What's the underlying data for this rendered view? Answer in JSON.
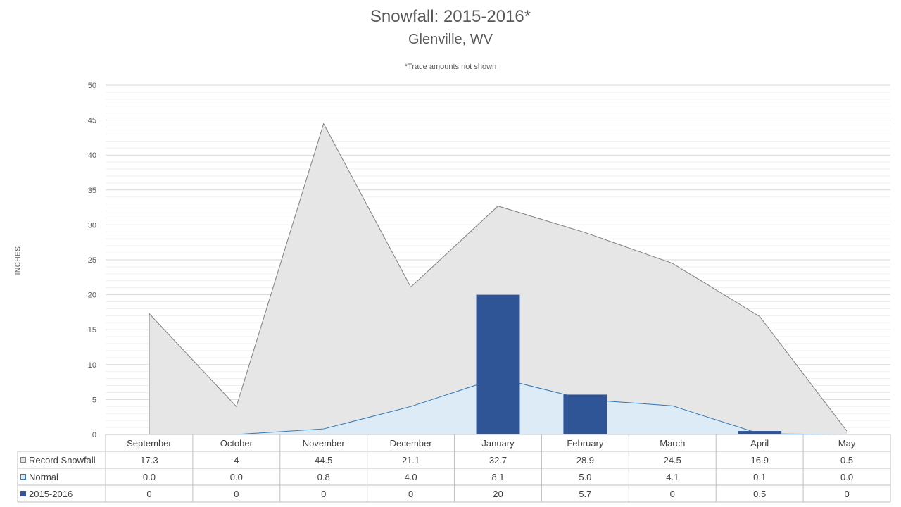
{
  "chart_data": {
    "type": "area",
    "title": "Snowfall: 2015-2016*",
    "subtitle": "Glenville, WV",
    "note": "*Trace amounts not shown",
    "ylabel": "INCHES",
    "xlabel": "",
    "ylim": [
      0,
      50
    ],
    "yticks": [
      0,
      5,
      10,
      15,
      20,
      25,
      30,
      35,
      40,
      45,
      50
    ],
    "grid": true,
    "legend": "data-table",
    "categories": [
      "September",
      "October",
      "November",
      "December",
      "January",
      "February",
      "March",
      "April",
      "May"
    ],
    "series": [
      {
        "name": "Record Snowfall",
        "kind": "area",
        "color": "#e7e6e6",
        "line_color": "#7f7f7f",
        "values": [
          17.3,
          4,
          44.5,
          21.1,
          32.7,
          28.9,
          24.5,
          16.9,
          0.5
        ],
        "labels": [
          "17.3",
          "4",
          "44.5",
          "21.1",
          "32.7",
          "28.9",
          "24.5",
          "16.9",
          "0.5"
        ]
      },
      {
        "name": "Normal",
        "kind": "area",
        "color": "#ddebf7",
        "line_color": "#2e75b6",
        "values": [
          0.0,
          0.0,
          0.8,
          4.0,
          8.1,
          5.0,
          4.1,
          0.1,
          0.0
        ],
        "labels": [
          "0.0",
          "0.0",
          "0.8",
          "4.0",
          "8.1",
          "5.0",
          "4.1",
          "0.1",
          "0.0"
        ]
      },
      {
        "name": "2015-2016",
        "kind": "bar",
        "color": "#2f5597",
        "values": [
          0,
          0,
          0,
          0,
          20,
          5.7,
          0,
          0.5,
          0
        ],
        "labels": [
          "0",
          "0",
          "0",
          "0",
          "20",
          "5.7",
          "0",
          "0.5",
          "0"
        ]
      }
    ]
  }
}
